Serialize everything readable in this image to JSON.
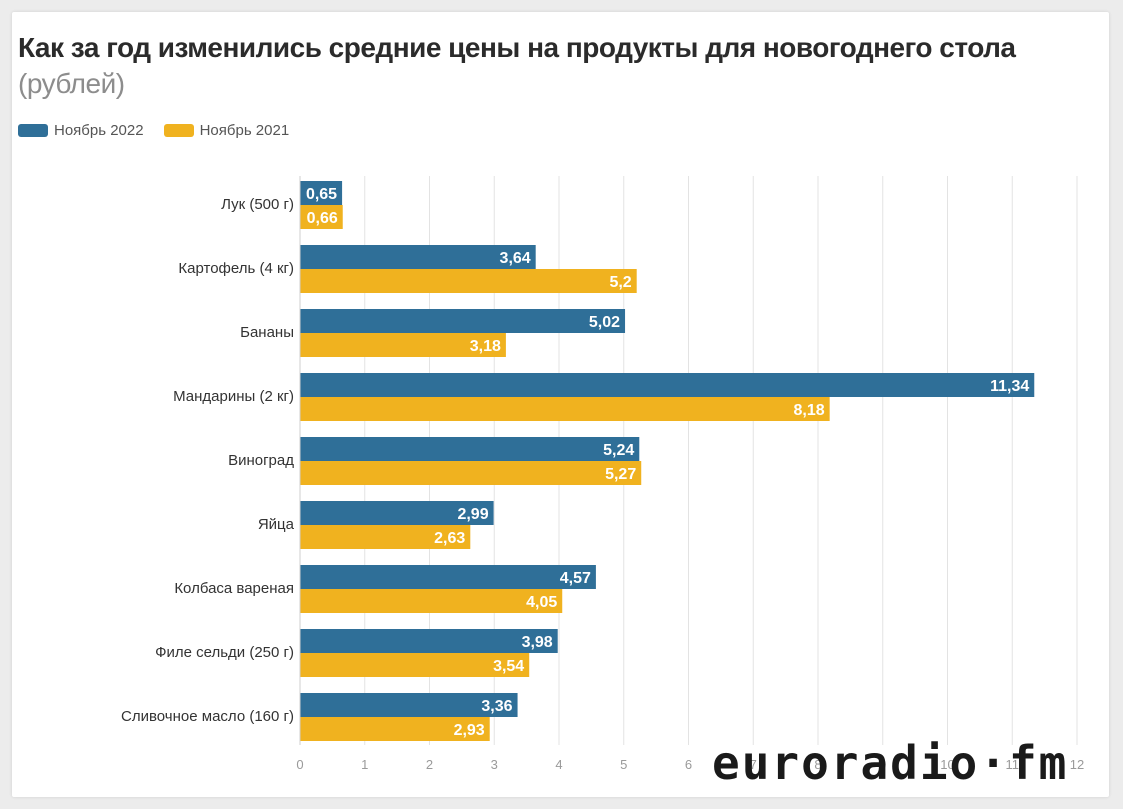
{
  "chart_data": {
    "type": "bar",
    "orientation": "horizontal",
    "title": "Как за год изменились средние цены на продукты для новогоднего стола",
    "subtitle": "(рублей)",
    "categories": [
      "Лук (500 г)",
      "Картофель (4 кг)",
      "Бананы",
      "Мандарины (2 кг)",
      "Виноград",
      "Яйца",
      "Колбаса вареная",
      "Филе сельди (250 г)",
      "Сливочное масло (160 г)"
    ],
    "series": [
      {
        "name": "Ноябрь 2022",
        "color": "#2f6f98",
        "values": [
          0.65,
          3.64,
          5.02,
          11.34,
          5.24,
          2.99,
          4.57,
          3.98,
          3.36
        ],
        "labels": [
          "0,65",
          "3,64",
          "5,02",
          "11,34",
          "5,24",
          "2,99",
          "4,57",
          "3,98",
          "3,36"
        ]
      },
      {
        "name": "Ноябрь 2021",
        "color": "#f0b21f",
        "values": [
          0.66,
          5.2,
          3.18,
          8.18,
          5.27,
          2.63,
          4.05,
          3.54,
          2.93
        ],
        "labels": [
          "0,66",
          "5,2",
          "3,18",
          "8,18",
          "5,27",
          "2,63",
          "4,05",
          "3,54",
          "2,93"
        ]
      }
    ],
    "xlim": [
      0,
      12
    ],
    "xticks": [
      "0",
      "1",
      "2",
      "3",
      "4",
      "5",
      "6",
      "7",
      "8",
      "9",
      "10",
      "11",
      "12"
    ],
    "grid": true,
    "legend": "top-left"
  },
  "logo": {
    "text": "euroradio·fm"
  }
}
